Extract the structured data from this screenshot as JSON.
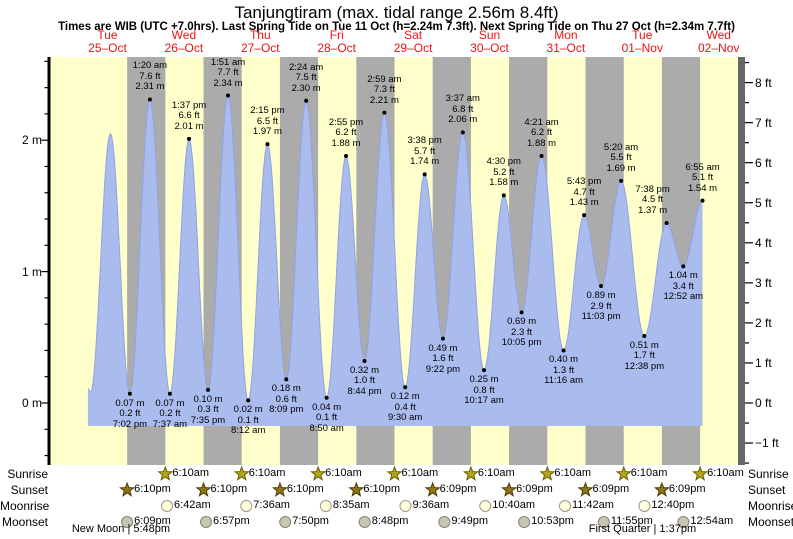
{
  "header": {
    "title": "Tanjungtiram (max. tidal range 2.56m 8.4ft)",
    "subtitle": "Times are WIB (UTC +7.0hrs). Last Spring Tide on Tue 11 Oct (h=2.24m 7.3ft). Next Spring Tide on Thu 27 Oct (h=2.34m 7.7ft)"
  },
  "colors": {
    "day_band": "#ffffcb",
    "night_band": "#ababab",
    "tide_fill": "#aabbee",
    "tide_edge": "#8fa3e2",
    "day_header_red": "#ee1111",
    "left_axis": "#000000",
    "right_axis_bar": "#666666",
    "sunrise_star_fill": "#b3a41f",
    "sunrise_star_stroke": "#6b6000",
    "sunset_star_fill": "#8f741c",
    "sunset_star_stroke": "#4d3c00",
    "moonrise_fill": "#ffffdd",
    "moonrise_stroke": "#999988",
    "moonset_fill": "#c9c5b4",
    "moonset_stroke": "#84846f"
  },
  "chart_data": {
    "type": "area",
    "title": "Tide height curve for Tanjungtiram, Tue 25 Oct - Wed 02 Nov",
    "x_axis": {
      "days": [
        {
          "dow": "Tue",
          "date": "25–Oct"
        },
        {
          "dow": "Wed",
          "date": "26–Oct"
        },
        {
          "dow": "Thu",
          "date": "27–Oct"
        },
        {
          "dow": "Fri",
          "date": "28–Oct"
        },
        {
          "dow": "Sat",
          "date": "29–Oct"
        },
        {
          "dow": "Sun",
          "date": "30–Oct"
        },
        {
          "dow": "Mon",
          "date": "31–Oct"
        },
        {
          "dow": "Tue",
          "date": "01–Nov"
        },
        {
          "dow": "Wed",
          "date": "02–Nov"
        }
      ]
    },
    "y_axis_left": {
      "unit": "m",
      "labels": [
        {
          "v": 0,
          "label": "0 m"
        },
        {
          "v": 1,
          "label": "1 m"
        },
        {
          "v": 2,
          "label": "2 m"
        }
      ]
    },
    "y_axis_right": {
      "unit": "ft",
      "labels": [
        {
          "v": 8,
          "label": "8 ft"
        },
        {
          "v": 7,
          "label": "7 ft"
        },
        {
          "v": 6,
          "label": "6 ft"
        },
        {
          "v": 5,
          "label": "5 ft"
        },
        {
          "v": 4,
          "label": "4 ft"
        },
        {
          "v": 3,
          "label": "3 ft"
        },
        {
          "v": 2,
          "label": "2 ft"
        },
        {
          "v": 1,
          "label": "1 ft"
        },
        {
          "v": 0,
          "label": "0 ft"
        },
        {
          "v": -1,
          "label": "−1 ft"
        }
      ]
    },
    "curve_start": {
      "day": 0,
      "time": "5:50 am",
      "m": 0.11
    },
    "events": [
      {
        "day": 0,
        "time": "6:40 am",
        "m": 0.08,
        "type": "low",
        "labeled": false
      },
      {
        "day": 0,
        "time": "12:55 pm",
        "m": 2.05,
        "type": "high",
        "labeled": false
      },
      {
        "day": 0,
        "time": "7:02 pm",
        "m": 0.07,
        "m_label": "0.07 m",
        "ft_label": "0.2 ft",
        "type": "low",
        "labeled": true
      },
      {
        "day": 1,
        "time": "1:20 am",
        "m": 2.31,
        "m_label": "2.31 m",
        "ft_label": "7.6 ft",
        "type": "high",
        "labeled": true
      },
      {
        "day": 1,
        "time": "7:37 am",
        "m": 0.07,
        "m_label": "0.07 m",
        "ft_label": "0.2 ft",
        "type": "low",
        "labeled": true
      },
      {
        "day": 1,
        "time": "1:37 pm",
        "m": 2.01,
        "m_label": "2.01 m",
        "ft_label": "6.6 ft",
        "type": "high",
        "labeled": true
      },
      {
        "day": 1,
        "time": "7:35 pm",
        "m": 0.1,
        "m_label": "0.10 m",
        "ft_label": "0.3 ft",
        "type": "low",
        "labeled": true
      },
      {
        "day": 2,
        "time": "1:51 am",
        "m": 2.34,
        "m_label": "2.34 m",
        "ft_label": "7.7 ft",
        "type": "high",
        "labeled": true
      },
      {
        "day": 2,
        "time": "8:12 am",
        "m": 0.02,
        "m_label": "0.02 m",
        "ft_label": "0.1 ft",
        "type": "low",
        "labeled": true
      },
      {
        "day": 2,
        "time": "2:15 pm",
        "m": 1.97,
        "m_label": "1.97 m",
        "ft_label": "6.5 ft",
        "type": "high",
        "labeled": true
      },
      {
        "day": 2,
        "time": "8:09 pm",
        "m": 0.18,
        "m_label": "0.18 m",
        "ft_label": "0.6 ft",
        "type": "low",
        "labeled": true
      },
      {
        "day": 3,
        "time": "2:24 am",
        "m": 2.3,
        "m_label": "2.30 m",
        "ft_label": "7.5 ft",
        "type": "high",
        "labeled": true
      },
      {
        "day": 3,
        "time": "8:50 am",
        "m": 0.04,
        "m_label": "0.04 m",
        "ft_label": "0.1 ft",
        "type": "low",
        "labeled": true
      },
      {
        "day": 3,
        "time": "2:55 pm",
        "m": 1.88,
        "m_label": "1.88 m",
        "ft_label": "6.2 ft",
        "type": "high",
        "labeled": true
      },
      {
        "day": 3,
        "time": "8:44 pm",
        "m": 0.32,
        "m_label": "0.32 m",
        "ft_label": "1.0 ft",
        "type": "low",
        "labeled": true
      },
      {
        "day": 4,
        "time": "2:59 am",
        "m": 2.21,
        "m_label": "2.21 m",
        "ft_label": "7.3 ft",
        "type": "high",
        "labeled": true
      },
      {
        "day": 4,
        "time": "9:30 am",
        "m": 0.12,
        "m_label": "0.12 m",
        "ft_label": "0.4 ft",
        "type": "low",
        "labeled": true
      },
      {
        "day": 4,
        "time": "3:38 pm",
        "m": 1.74,
        "m_label": "1.74 m",
        "ft_label": "5.7 ft",
        "type": "high",
        "labeled": true
      },
      {
        "day": 4,
        "time": "9:22 pm",
        "m": 0.49,
        "m_label": "0.49 m",
        "ft_label": "1.6 ft",
        "type": "low",
        "labeled": true
      },
      {
        "day": 5,
        "time": "3:37 am",
        "m": 2.06,
        "m_label": "2.06 m",
        "ft_label": "6.8 ft",
        "type": "high",
        "labeled": true
      },
      {
        "day": 5,
        "time": "10:17 am",
        "m": 0.25,
        "m_label": "0.25 m",
        "ft_label": "0.8 ft",
        "type": "low",
        "labeled": true
      },
      {
        "day": 5,
        "time": "4:30 pm",
        "m": 1.58,
        "m_label": "1.58 m",
        "ft_label": "5.2 ft",
        "type": "high",
        "labeled": true
      },
      {
        "day": 5,
        "time": "10:05 pm",
        "m": 0.69,
        "m_label": "0.69 m",
        "ft_label": "2.3 ft",
        "type": "low",
        "labeled": true
      },
      {
        "day": 6,
        "time": "4:21 am",
        "m": 1.88,
        "m_label": "1.88 m",
        "ft_label": "6.2 ft",
        "type": "high",
        "labeled": true
      },
      {
        "day": 6,
        "time": "11:16 am",
        "m": 0.4,
        "m_label": "0.40 m",
        "ft_label": "1.3 ft",
        "type": "low",
        "labeled": true
      },
      {
        "day": 6,
        "time": "5:43 pm",
        "m": 1.43,
        "m_label": "1.43 m",
        "ft_label": "4.7 ft",
        "type": "high",
        "labeled": true
      },
      {
        "day": 6,
        "time": "11:03 pm",
        "m": 0.89,
        "m_label": "0.89 m",
        "ft_label": "2.9 ft",
        "type": "low",
        "labeled": true
      },
      {
        "day": 7,
        "time": "5:20 am",
        "m": 1.69,
        "m_label": "1.69 m",
        "ft_label": "5.5 ft",
        "type": "high",
        "labeled": true
      },
      {
        "day": 7,
        "time": "12:38 pm",
        "m": 0.51,
        "m_label": "0.51 m",
        "ft_label": "1.7 ft",
        "type": "low",
        "labeled": true
      },
      {
        "day": 7,
        "time": "7:38 pm",
        "m": 1.37,
        "m_label": "1.37 m",
        "ft_label": "4.5 ft",
        "type": "high",
        "labeled": true
      },
      {
        "day": 8,
        "time": "12:52 am",
        "m": 1.04,
        "m_label": "1.04 m",
        "ft_label": "3.4 ft",
        "type": "low",
        "labeled": true
      },
      {
        "day": 8,
        "time": "6:55 am",
        "m": 1.54,
        "m_label": "1.54 m",
        "ft_label": "5.1 ft",
        "type": "high",
        "labeled": true
      }
    ]
  },
  "astro": {
    "row_labels": {
      "sunrise": "Sunrise",
      "sunset": "Sunset",
      "moonrise": "Moonrise",
      "moonset": "Moonset"
    },
    "sunrise": [
      {
        "day": 1,
        "time": "6:10am"
      },
      {
        "day": 2,
        "time": "6:10am"
      },
      {
        "day": 3,
        "time": "6:10am"
      },
      {
        "day": 4,
        "time": "6:10am"
      },
      {
        "day": 5,
        "time": "6:10am"
      },
      {
        "day": 6,
        "time": "6:10am"
      },
      {
        "day": 7,
        "time": "6:10am"
      },
      {
        "day": 8,
        "time": "6:10am"
      }
    ],
    "sunset": [
      {
        "day": 0,
        "time": "6:10pm"
      },
      {
        "day": 1,
        "time": "6:10pm"
      },
      {
        "day": 2,
        "time": "6:10pm"
      },
      {
        "day": 3,
        "time": "6:10pm"
      },
      {
        "day": 4,
        "time": "6:09pm"
      },
      {
        "day": 5,
        "time": "6:09pm"
      },
      {
        "day": 6,
        "time": "6:09pm"
      },
      {
        "day": 7,
        "time": "6:09pm"
      }
    ],
    "moonrise": [
      {
        "day": 1,
        "time": "6:42am"
      },
      {
        "day": 2,
        "time": "7:36am"
      },
      {
        "day": 3,
        "time": "8:35am"
      },
      {
        "day": 4,
        "time": "9:36am"
      },
      {
        "day": 5,
        "time": "10:40am"
      },
      {
        "day": 6,
        "time": "11:42am"
      },
      {
        "day": 7,
        "time": "12:40pm"
      }
    ],
    "moonset": [
      {
        "day": 0,
        "time": "6:09pm"
      },
      {
        "day": 1,
        "time": "6:57pm"
      },
      {
        "day": 2,
        "time": "7:50pm"
      },
      {
        "day": 3,
        "time": "8:48pm"
      },
      {
        "day": 4,
        "time": "9:49pm"
      },
      {
        "day": 5,
        "time": "10:53pm"
      },
      {
        "day": 6,
        "time": "11:55pm"
      },
      {
        "day": 8,
        "time": "12:54am"
      }
    ],
    "phases": [
      {
        "day": 0,
        "time": "5:48pm",
        "label": "New Moon | 5:48pm"
      },
      {
        "day": 7,
        "time": "1:37pm",
        "label": "First Quarter | 1:37pm"
      }
    ]
  }
}
